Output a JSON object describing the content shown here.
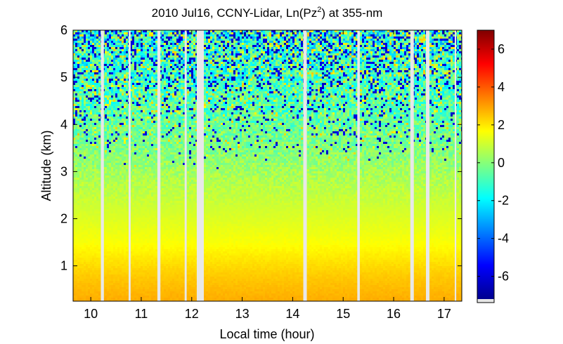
{
  "chart_data": {
    "type": "heatmap",
    "title": "2010 Jul16, CCNY-Lidar, Ln(Pz",
    "title_superscript": "2",
    "title_suffix": ") at 355-nm",
    "xlabel": "Local time (hour)",
    "ylabel": "Altitude (km)",
    "xlim": [
      9.65,
      17.35
    ],
    "ylim": [
      0.25,
      6.0
    ],
    "xticks": [
      "10",
      "11",
      "12",
      "13",
      "14",
      "15",
      "16",
      "17"
    ],
    "xtick_values": [
      10,
      11,
      12,
      13,
      14,
      15,
      16,
      17
    ],
    "yticks": [
      "1",
      "2",
      "3",
      "4",
      "5",
      "6"
    ],
    "ytick_values": [
      1,
      2,
      3,
      4,
      5,
      6
    ],
    "colorbar": {
      "range": [
        -7.2,
        7.0
      ],
      "colormap": "jet",
      "ticks": [
        "-6",
        "-4",
        "-2",
        "0",
        "2",
        "4",
        "6"
      ],
      "tick_values": [
        -6,
        -4,
        -2,
        0,
        2,
        4,
        6
      ]
    },
    "data_gaps_hours": [
      [
        10.2,
        10.26
      ],
      [
        10.75,
        10.79
      ],
      [
        11.32,
        11.38
      ],
      [
        11.86,
        11.9
      ],
      [
        12.1,
        12.24
      ],
      [
        14.21,
        14.28
      ],
      [
        15.28,
        15.33
      ],
      [
        16.33,
        16.4
      ],
      [
        16.64,
        16.71
      ],
      [
        17.21,
        17.24
      ]
    ],
    "profile": [
      {
        "altitude_km": 0.3,
        "value": 2.8
      },
      {
        "altitude_km": 0.8,
        "value": 2.4
      },
      {
        "altitude_km": 1.5,
        "value": 1.6
      },
      {
        "altitude_km": 2.0,
        "value": 1.2
      },
      {
        "altitude_km": 2.8,
        "value": 0.6
      },
      {
        "altitude_km": 3.5,
        "value": -0.1
      },
      {
        "altitude_km": 4.5,
        "value": -0.7
      },
      {
        "altitude_km": 6.0,
        "value": -1.3
      }
    ]
  }
}
